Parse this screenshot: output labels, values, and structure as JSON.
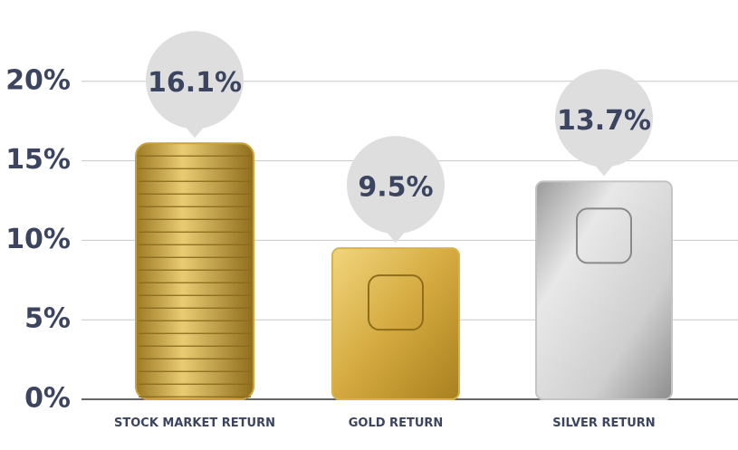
{
  "chart_data": {
    "type": "bar",
    "categories": [
      "STOCK MARKET RETURN",
      "GOLD RETURN",
      "SILVER RETURN"
    ],
    "values": [
      16.1,
      9.5,
      13.7
    ],
    "value_labels": [
      "16.1%",
      "9.5%",
      "13.7%"
    ],
    "colors": [
      "#c9a23e",
      "#d8b24c",
      "#c4c4c4"
    ],
    "ylim": [
      0,
      25
    ],
    "yticks": [
      {
        "value": 0,
        "label": "0%"
      },
      {
        "value": 5,
        "label": "5%"
      },
      {
        "value": 10,
        "label": "10%"
      },
      {
        "value": 15,
        "label": "15%"
      },
      {
        "value": 20,
        "label": "20%"
      }
    ],
    "grid": true
  }
}
